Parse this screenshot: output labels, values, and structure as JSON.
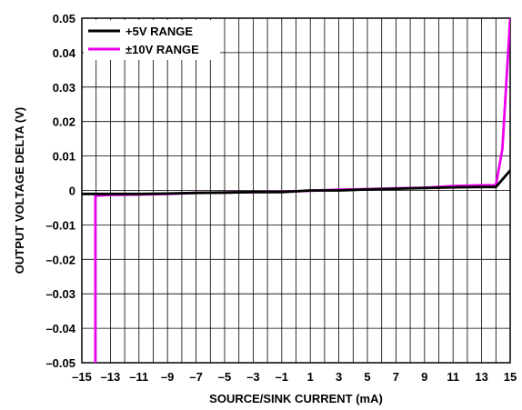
{
  "chart_data": {
    "type": "line",
    "title": "",
    "xlabel": "SOURCE/SINK CURRENT (mA)",
    "ylabel": "OUTPUT VOLTAGE DELTA (V)",
    "xlim": [
      -15,
      15
    ],
    "ylim": [
      -0.05,
      0.05
    ],
    "grid": true,
    "legend_position": "top-left",
    "x_ticks": [
      -15,
      -13,
      -11,
      -9,
      -7,
      -5,
      -3,
      -1,
      1,
      3,
      5,
      7,
      9,
      11,
      13,
      15
    ],
    "x_tick_labels": [
      "–15",
      "–13",
      "–11",
      "–9",
      "–7",
      "–5",
      "–3",
      "–1",
      "1",
      "3",
      "5",
      "7",
      "9",
      "11",
      "13",
      "15"
    ],
    "y_ticks": [
      0.05,
      0.04,
      0.03,
      0.02,
      0.01,
      0,
      -0.01,
      -0.02,
      -0.03,
      -0.04,
      -0.05
    ],
    "y_tick_labels": [
      "0.05",
      "0.04",
      "0.03",
      "0.02",
      "0.01",
      "0",
      "–0.01",
      "–0.02",
      "–0.03",
      "–0.04",
      "–0.05"
    ],
    "series": [
      {
        "name": "+5V RANGE",
        "color": "#000000",
        "x": [
          -15,
          -13,
          -11,
          -9,
          -7,
          -5,
          -3,
          -1,
          1,
          3,
          5,
          7,
          9,
          11,
          13,
          14,
          15
        ],
        "y": [
          -0.001,
          -0.001,
          -0.001,
          -0.0009,
          -0.0007,
          -0.0006,
          -0.0005,
          -0.0005,
          0,
          0,
          0.0003,
          0.0005,
          0.0007,
          0.0009,
          0.001,
          0.001,
          0.0058
        ]
      },
      {
        "name": "±10V RANGE",
        "color": "#ee00ee",
        "x": [
          -14.05,
          -14.05,
          -14.0,
          -13,
          -11,
          -9,
          -7,
          -5,
          -3,
          -1,
          1,
          3,
          5,
          7,
          9,
          11,
          13,
          14,
          14.45,
          15
        ],
        "y": [
          -0.05,
          -0.0015,
          -0.0015,
          -0.0013,
          -0.0012,
          -0.001,
          -0.0007,
          -0.0006,
          -0.0005,
          -0.0004,
          -0.0001,
          0.0002,
          0.0004,
          0.0006,
          0.0008,
          0.0013,
          0.0015,
          0.0015,
          0.012,
          0.05
        ]
      }
    ]
  }
}
